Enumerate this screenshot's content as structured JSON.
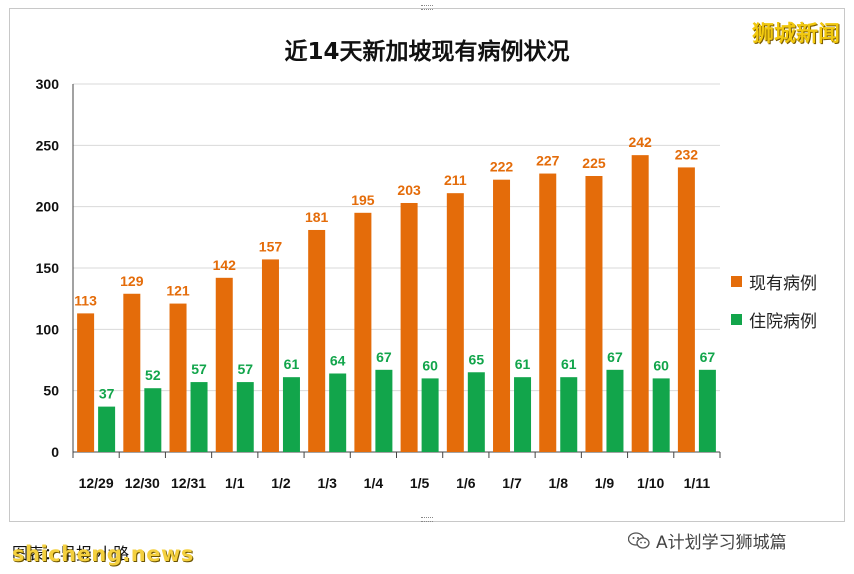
{
  "brand_top": "狮城新闻",
  "wechat_label": "A计划学习狮城篇",
  "footer_source": "图表：早报·小路",
  "footer_site": "shicheng.news",
  "colors": {
    "current": "#E46C0A",
    "hospital": "#12A54B",
    "current_label": "#E46C0A",
    "hospital_label": "#12A54B",
    "grid": "#d9d9d9"
  },
  "chart_data": {
    "type": "bar",
    "title": "近14天新加坡现有病例状况",
    "categories": [
      "12/29",
      "12/30",
      "12/31",
      "1/1",
      "1/2",
      "1/3",
      "1/4",
      "1/5",
      "1/6",
      "1/7",
      "1/8",
      "1/9",
      "1/10",
      "1/11"
    ],
    "series": [
      {
        "name": "现有病例",
        "values": [
          113,
          129,
          121,
          142,
          157,
          181,
          195,
          203,
          211,
          222,
          227,
          225,
          242,
          232
        ]
      },
      {
        "name": "住院病例",
        "values": [
          37,
          52,
          57,
          57,
          61,
          64,
          67,
          60,
          65,
          61,
          61,
          67,
          60,
          67
        ]
      }
    ],
    "ylim": [
      0,
      300
    ],
    "yticks": [
      0,
      50,
      100,
      150,
      200,
      250,
      300
    ],
    "grid": true,
    "legend": "right"
  }
}
